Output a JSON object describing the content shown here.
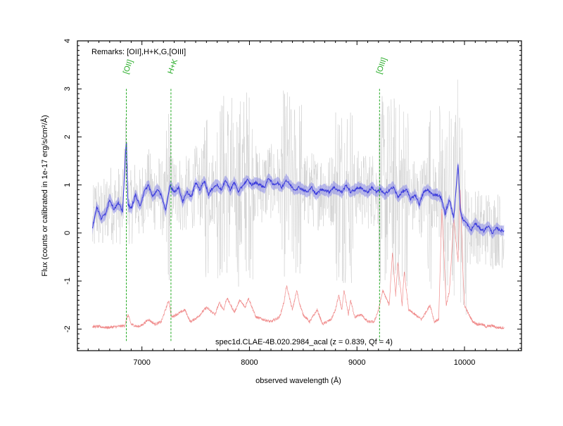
{
  "chart_data": {
    "type": "line",
    "xlabel": "observed wavelength (Å)",
    "ylabel": "Flux (counts or calibrated in 1e-17 erg/s/cm²/Å)",
    "xlim": [
      6400,
      10530
    ],
    "ylim": [
      -2.45,
      4
    ],
    "x_ticks": [
      7000,
      8000,
      9000,
      10000
    ],
    "y_ticks": [
      -2,
      -1,
      0,
      1,
      2,
      3,
      4
    ],
    "x_tick_labels": [
      "7000",
      "8000",
      "9000",
      "10000"
    ],
    "y_tick_labels": [
      "-2",
      "-1",
      "0",
      "1",
      "2",
      "3",
      "4"
    ],
    "grid": false,
    "remarks": "Remarks: [OII],H+K,G,[OIII]",
    "caption": "spec1d.CLAE-4B.020.2984_acal (z = 0.839, Qf = 4)",
    "line_markers": [
      {
        "label": "[OII]",
        "x": 6855
      },
      {
        "label": "H+K",
        "x": 7270
      },
      {
        "label": "[OIII]",
        "x": 9210
      }
    ],
    "colors": {
      "raw": "#c8c8c8",
      "smoothed": "#3a3adc",
      "band": "#8888e6",
      "sky": "#f08c8c",
      "marker": "#22aa22"
    },
    "series": [
      {
        "key": "smoothed",
        "x": [
          6540,
          6580,
          6620,
          6660,
          6700,
          6740,
          6780,
          6820,
          6855,
          6870,
          6900,
          6940,
          6980,
          7020,
          7060,
          7100,
          7140,
          7180,
          7220,
          7260,
          7300,
          7340,
          7380,
          7420,
          7460,
          7500,
          7540,
          7580,
          7620,
          7660,
          7700,
          7740,
          7780,
          7820,
          7860,
          7900,
          7940,
          7980,
          8020,
          8060,
          8100,
          8140,
          8180,
          8220,
          8260,
          8300,
          8340,
          8380,
          8420,
          8460,
          8500,
          8540,
          8580,
          8620,
          8660,
          8700,
          8740,
          8780,
          8820,
          8860,
          8900,
          8940,
          8980,
          9020,
          9060,
          9100,
          9140,
          9180,
          9220,
          9260,
          9300,
          9340,
          9380,
          9420,
          9460,
          9500,
          9540,
          9580,
          9620,
          9660,
          9700,
          9740,
          9780,
          9820,
          9860,
          9900,
          9940,
          9960,
          9980,
          10020,
          10060,
          10100,
          10140,
          10180,
          10220,
          10260,
          10300,
          10340,
          10370
        ],
        "y": [
          0.1,
          0.55,
          0.3,
          0.4,
          0.7,
          0.5,
          0.62,
          0.45,
          1.95,
          0.6,
          0.5,
          0.8,
          0.55,
          0.85,
          1.0,
          0.75,
          0.9,
          0.8,
          0.45,
          1.0,
          0.85,
          0.95,
          0.65,
          0.85,
          0.75,
          1.05,
          0.9,
          1.1,
          0.8,
          0.95,
          1.0,
          0.9,
          1.1,
          0.9,
          1.05,
          0.85,
          1.0,
          1.1,
          1.0,
          1.05,
          1.0,
          0.95,
          1.15,
          1.0,
          1.05,
          0.95,
          1.1,
          1.0,
          0.9,
          0.95,
          0.9,
          0.85,
          0.95,
          0.8,
          0.9,
          0.9,
          0.85,
          0.95,
          0.9,
          0.85,
          1.0,
          0.85,
          0.9,
          0.95,
          0.9,
          0.85,
          0.95,
          0.85,
          0.9,
          0.8,
          0.9,
          0.95,
          0.75,
          0.85,
          0.9,
          0.7,
          0.8,
          0.6,
          0.85,
          0.9,
          0.8,
          0.8,
          0.75,
          0.4,
          0.7,
          0.3,
          1.45,
          0.5,
          0.3,
          0.2,
          0.05,
          0.2,
          0.1,
          0.05,
          0.15,
          0.0,
          0.1,
          0.05,
          0.05
        ]
      },
      {
        "key": "sky",
        "x": [
          6540,
          6600,
          6680,
          6760,
          6840,
          6870,
          6900,
          6960,
          7000,
          7060,
          7120,
          7180,
          7250,
          7275,
          7320,
          7400,
          7450,
          7520,
          7600,
          7680,
          7720,
          7760,
          7790,
          7860,
          7910,
          7960,
          7990,
          8060,
          8130,
          8200,
          8280,
          8320,
          8345,
          8400,
          8440,
          8470,
          8500,
          8560,
          8630,
          8680,
          8760,
          8800,
          8830,
          8860,
          8880,
          8920,
          8940,
          8980,
          9040,
          9100,
          9160,
          9200,
          9240,
          9300,
          9330,
          9360,
          9380,
          9420,
          9440,
          9480,
          9540,
          9600,
          9680,
          9720,
          9760,
          9790,
          9830,
          9860,
          9900,
          9940,
          9960,
          9985,
          10000,
          10040,
          10080,
          10120,
          10160,
          10200,
          10260,
          10300,
          10370
        ],
        "y": [
          -1.95,
          -1.95,
          -1.97,
          -1.95,
          -1.93,
          -1.7,
          -1.9,
          -1.95,
          -1.92,
          -1.8,
          -1.9,
          -1.85,
          -1.4,
          -1.75,
          -1.7,
          -1.6,
          -1.85,
          -1.75,
          -1.55,
          -1.7,
          -1.45,
          -1.6,
          -1.35,
          -1.65,
          -1.4,
          -1.55,
          -1.35,
          -1.75,
          -1.8,
          -1.85,
          -1.75,
          -1.45,
          -1.1,
          -1.6,
          -1.2,
          -1.5,
          -1.7,
          -1.85,
          -1.6,
          -1.9,
          -1.8,
          -1.6,
          -1.3,
          -1.6,
          -1.2,
          -1.7,
          -1.4,
          -1.75,
          -1.7,
          -1.85,
          -1.85,
          -1.6,
          -1.2,
          -1.5,
          -0.4,
          -1.3,
          -0.6,
          -1.5,
          -0.8,
          -1.6,
          -1.7,
          -1.8,
          -1.5,
          -1.85,
          -1.8,
          0.5,
          -1.5,
          -1.2,
          0.3,
          -0.6,
          0.9,
          -0.8,
          -1.5,
          -1.7,
          -1.85,
          -1.9,
          -1.9,
          -1.95,
          -1.93,
          -1.97,
          -1.97
        ]
      }
    ]
  }
}
